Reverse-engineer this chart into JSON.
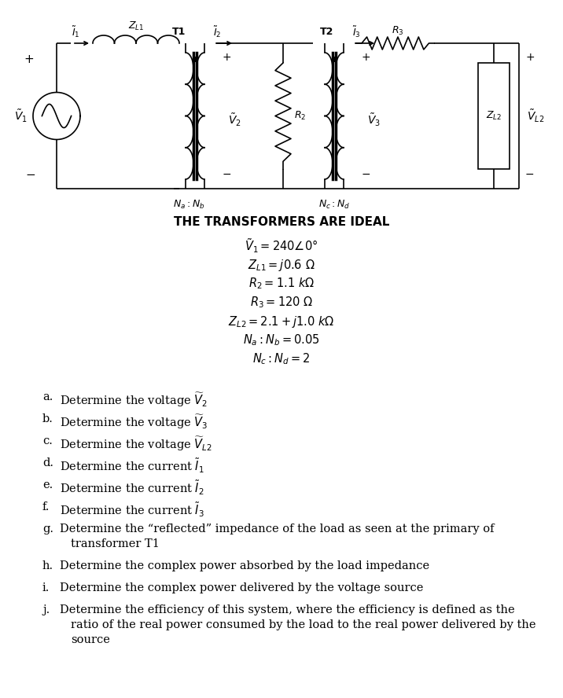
{
  "bg": "#ffffff",
  "title": "THE TRANSFORMERS ARE IDEAL",
  "eqs": [
    "$\\tilde{V}_1 = 240\\angle0°$",
    "$Z_{L1} = j0.6\\ \\Omega$",
    "$R_2 = 1.1\\ k\\Omega$",
    "$R_3 = 120\\ \\Omega$",
    "$Z_{L2} = 2.1 + j1.0\\ k\\Omega$",
    "$N_a: N_b = 0.05$",
    "$N_c: N_d = 2$"
  ],
  "qs": [
    {
      "lbl": "a.",
      "lines": [
        "Determine the voltage $\\widetilde{V}_2$"
      ]
    },
    {
      "lbl": "b.",
      "lines": [
        "Determine the voltage $\\widetilde{V}_3$"
      ]
    },
    {
      "lbl": "c.",
      "lines": [
        "Determine the voltage $\\widetilde{V}_{L2}$"
      ]
    },
    {
      "lbl": "d.",
      "lines": [
        "Determine the current $\\widetilde{I}_1$"
      ]
    },
    {
      "lbl": "e.",
      "lines": [
        "Determine the current $\\widetilde{I}_2$"
      ]
    },
    {
      "lbl": "f.",
      "lines": [
        "Determine the current $\\widetilde{I}_3$"
      ]
    },
    {
      "lbl": "g.",
      "lines": [
        "Determine the “reflected” impedance of the load as seen at the primary of",
        "    transformer T1"
      ]
    },
    {
      "lbl": "h.",
      "lines": [
        "Determine the complex power absorbed by the load impedance"
      ]
    },
    {
      "lbl": "i.",
      "lines": [
        "Determine the complex power delivered by the voltage source"
      ]
    },
    {
      "lbl": "j.",
      "lines": [
        "Determine the efficiency of this system, where the efficiency is defined as the",
        "    ratio of the real power consumed by the load to the real power delivered by the",
        "    source"
      ]
    }
  ]
}
